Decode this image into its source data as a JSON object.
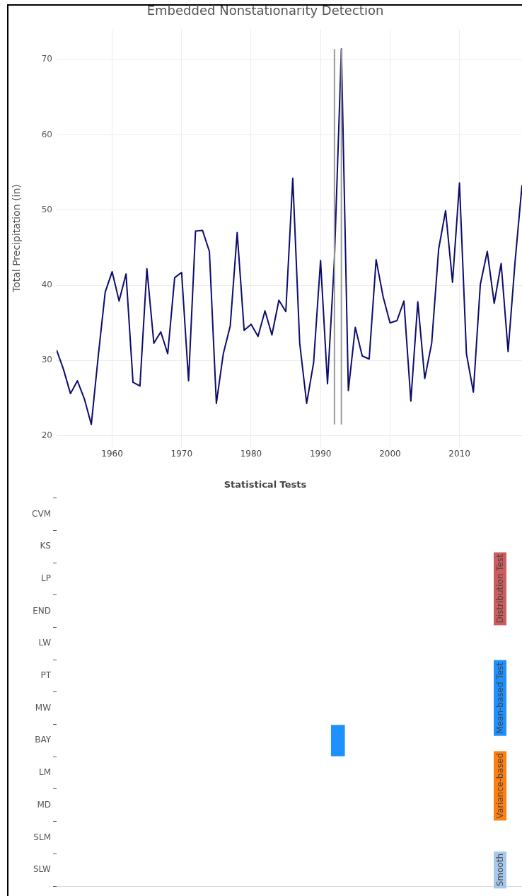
{
  "chart_data": [
    {
      "type": "line",
      "title": "Embedded Nonstationarity Detection",
      "ylabel": "Total Precipitation (in)",
      "x": [
        1952,
        1953,
        1954,
        1955,
        1956,
        1957,
        1958,
        1959,
        1960,
        1961,
        1962,
        1963,
        1964,
        1965,
        1966,
        1967,
        1968,
        1969,
        1970,
        1971,
        1972,
        1973,
        1974,
        1975,
        1976,
        1977,
        1978,
        1979,
        1980,
        1981,
        1982,
        1983,
        1984,
        1985,
        1986,
        1987,
        1988,
        1989,
        1990,
        1991,
        1992,
        1993,
        1994,
        1995,
        1996,
        1997,
        1998,
        1999,
        2000,
        2001,
        2002,
        2003,
        2004,
        2005,
        2006,
        2007,
        2008,
        2009,
        2010,
        2011,
        2012,
        2013,
        2014,
        2015,
        2016,
        2017,
        2018,
        2019
      ],
      "series": [
        {
          "color": "#0c0c6e",
          "values": [
            31.4,
            28.8,
            25.6,
            27.3,
            24.9,
            21.5,
            30.6,
            39.1,
            41.8,
            37.9,
            41.5,
            27.1,
            26.6,
            42.2,
            32.3,
            33.8,
            30.9,
            41.0,
            41.7,
            27.3,
            47.2,
            47.3,
            44.5,
            24.3,
            30.9,
            34.6,
            47.0,
            34.0,
            34.8,
            33.2,
            36.6,
            33.4,
            38.0,
            36.5,
            54.2,
            32.3,
            24.3,
            29.7,
            43.3,
            26.9,
            43.5,
            71.4,
            26.0,
            34.4,
            30.6,
            30.2,
            43.4,
            38.5,
            35.0,
            35.3,
            37.9,
            24.6,
            37.8,
            27.6,
            32.3,
            44.8,
            49.9,
            40.4,
            53.6,
            30.9,
            25.8,
            40.1,
            44.5,
            37.6,
            42.9,
            31.2,
            43.1,
            53.3
          ]
        }
      ],
      "xlim": [
        1952,
        2019
      ],
      "ylim": [
        18.5,
        74
      ],
      "xticks": [
        1960,
        1970,
        1980,
        1990,
        2000,
        2010
      ],
      "yticks": [
        20,
        30,
        40,
        50,
        60,
        70
      ],
      "grid": true,
      "legend": false,
      "marker": "none",
      "line_style": "solid",
      "ref_lines": [
        {
          "axis": "x",
          "value": 1992,
          "color": "#999999"
        },
        {
          "axis": "x",
          "value": 1993,
          "color": "#999999"
        }
      ]
    },
    {
      "type": "bar",
      "orientation": "horizontal",
      "title": "Statistical Tests",
      "categories": [
        "CVM",
        "KS",
        "LP",
        "END",
        "LW",
        "PT",
        "MW",
        "BAY",
        "LM",
        "MD",
        "SLM",
        "SLW"
      ],
      "values": [
        null,
        null,
        null,
        null,
        null,
        null,
        null,
        2,
        null,
        null,
        null,
        null
      ],
      "base": [
        null,
        null,
        null,
        null,
        null,
        null,
        null,
        1991.5,
        null,
        null,
        null,
        null
      ],
      "color": "#1e90ff",
      "xlim": [
        1952,
        2019
      ],
      "tick_labels": "y",
      "grid": false,
      "legend": false,
      "annotations": [
        "Distribution Test",
        "Mean-based Test",
        "Variance-based",
        "Smooth"
      ]
    }
  ]
}
